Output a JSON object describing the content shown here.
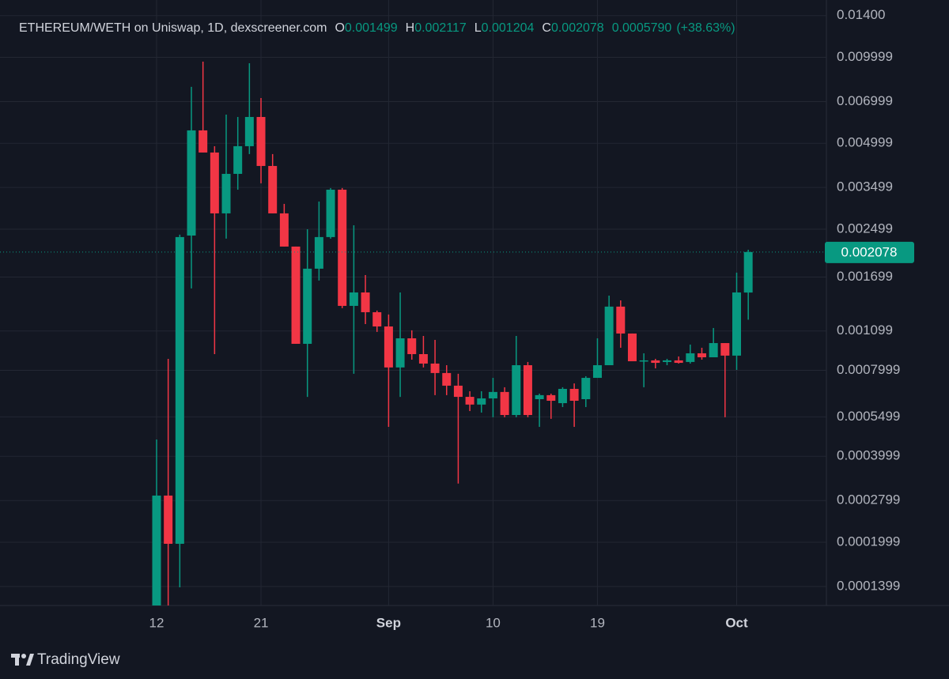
{
  "chart_data": {
    "type": "candlestick",
    "title": "ETHEREUM/WETH on Uniswap, 1D, dexscreener.com",
    "legend_labels": [
      "O",
      "H",
      "L",
      "C"
    ],
    "change": "0.0005790",
    "change_pct": "(+38.63%)",
    "categories": [
      "12",
      null,
      null,
      null,
      null,
      null,
      null,
      null,
      null,
      "21",
      null,
      null,
      null,
      null,
      null,
      null,
      null,
      null,
      null,
      null,
      "Sep",
      null,
      null,
      null,
      null,
      null,
      null,
      null,
      null,
      "10",
      null,
      null,
      null,
      null,
      null,
      null,
      null,
      null,
      "19",
      null,
      null,
      null,
      null,
      null,
      null,
      null,
      null,
      null,
      null,
      null,
      "Oct",
      null
    ],
    "series": [
      {
        "name": "open",
        "values": [
          0.00012,
          0.0002913,
          0.0001974,
          0.002374,
          0.005546,
          0.004639,
          0.002839,
          0.003905,
          0.004882,
          0.00618,
          0.004162,
          0.002839,
          0.002172,
          0.000991,
          0.001817,
          0.002345,
          0.003437,
          0.001346,
          0.0015,
          0.001279,
          0.00114,
          0.000819,
          0.001036,
          0.000912,
          0.000845,
          0.000783,
          0.000707,
          0.000646,
          0.000607,
          0.000638,
          0.000672,
          0.000558,
          0.000834,
          0.000634,
          0.000655,
          0.000614,
          0.000689,
          0.000634,
          0.000753,
          0.000834,
          0.001338,
          0.001077,
          0.000861,
          0.000867,
          0.000856,
          0.000867,
          0.000856,
          0.000918,
          0.000889,
          0.000997,
          0.000901,
          0.001499
        ]
      },
      {
        "name": "high",
        "values": [
          0.000458,
          0.000878,
          0.00239,
          0.007879,
          0.009658,
          0.004882,
          0.0063,
          0.00618,
          0.009535,
          0.007202,
          0.004581,
          0.003065,
          0.002172,
          0.002499,
          0.003124,
          0.003482,
          0.003482,
          0.00258,
          0.001726,
          0.001296,
          0.001255,
          0.0015,
          0.001105,
          0.001056,
          0.001023,
          0.000834,
          0.000778,
          0.000676,
          0.000676,
          0.000753,
          0.000698,
          0.001056,
          0.000856,
          0.000663,
          0.000663,
          0.000698,
          0.00072,
          0.000763,
          0.001036,
          0.001462,
          0.001407,
          0.001077,
          0.000918,
          0.000878,
          0.000878,
          0.000895,
          0.000985,
          0.00096,
          0.001126,
          0.000997,
          0.00176,
          0.002117
        ]
      },
      {
        "name": "low",
        "values": [
          0.00012,
          0.00012,
          0.000139,
          0.001549,
          0.004639,
          0.000912,
          0.002315,
          0.003437,
          0.004581,
          0.003618,
          0.002839,
          0.002172,
          0.000991,
          0.000646,
          0.001651,
          0.002315,
          0.001321,
          0.000778,
          0.001162,
          0.001091,
          0.000507,
          0.000646,
          0.000872,
          0.000819,
          0.000655,
          0.000655,
          0.000321,
          0.000576,
          0.000569,
          0.000548,
          0.000548,
          0.000548,
          0.000548,
          0.000507,
          0.000541,
          0.000595,
          0.000507,
          0.000595,
          0.000753,
          0.000834,
          0.00096,
          0.000861,
          0.000698,
          0.000813,
          0.000834,
          0.000845,
          0.000845,
          0.000872,
          0.000889,
          0.000548,
          0.000803,
          0.001204
        ]
      },
      {
        "name": "close",
        "values": [
          0.0002913,
          0.0001974,
          0.002345,
          0.005546,
          0.004639,
          0.002839,
          0.003905,
          0.004882,
          0.00618,
          0.004162,
          0.002839,
          0.002172,
          0.000991,
          0.001817,
          0.002345,
          0.003437,
          0.001346,
          0.0015,
          0.001279,
          0.00114,
          0.000819,
          0.001036,
          0.000912,
          0.000845,
          0.000783,
          0.000707,
          0.000646,
          0.000607,
          0.000638,
          0.000672,
          0.000558,
          0.000834,
          0.000558,
          0.000655,
          0.000626,
          0.000689,
          0.000626,
          0.000753,
          0.000834,
          0.001338,
          0.001077,
          0.000861,
          0.000867,
          0.00085,
          0.000867,
          0.00085,
          0.000918,
          0.000889,
          0.000997,
          0.000901,
          0.0015,
          0.002078
        ]
      }
    ],
    "up_color": "#089981",
    "down_color": "#f23645",
    "log_scale": true,
    "grid": true,
    "ylim": [
      0.00012,
      0.01588
    ],
    "yticks": [
      {
        "value": 0.014,
        "label": "0.01400"
      },
      0.009999,
      0.006999,
      0.004999,
      0.003499,
      0.002499,
      0.001699,
      0.001099,
      0.0007999,
      0.0005499,
      0.0003999,
      0.0002799,
      0.0001999,
      0.0001399
    ]
  },
  "branding": "TradingView"
}
